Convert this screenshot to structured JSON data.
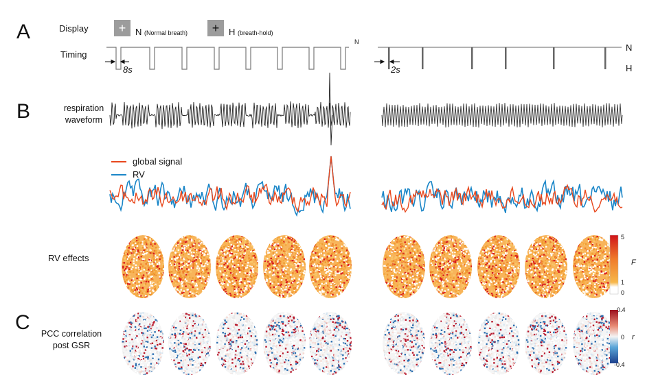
{
  "panels": {
    "a": "A",
    "b": "B",
    "c": "C"
  },
  "display": {
    "label": "Display",
    "key_n_symbol": "+",
    "key_n_text": "N",
    "key_n_sub": "(Normal breath)",
    "key_h_symbol": "+",
    "key_h_text": "H",
    "key_h_sub": "(breath-hold)"
  },
  "timing": {
    "label": "Timing",
    "left_interval": "8s",
    "right_interval": "2s",
    "level_n": "N",
    "level_h": "H",
    "cut_mark": "N"
  },
  "respiration": {
    "label_line1": "respiration",
    "label_line2": "waveform"
  },
  "legend": {
    "global_signal": "global signal",
    "rv": "RV",
    "global_color": "#e8471c",
    "rv_color": "#1a86c8"
  },
  "rv_effects": {
    "label": "RV effects",
    "scale_max": "5",
    "scale_mid": "1",
    "scale_min": "0",
    "scale_var": "F"
  },
  "pcc": {
    "label_line1": "PCC correlation",
    "label_line2": "post GSR",
    "scale_max": "0.4",
    "scale_mid": "0",
    "scale_min": "-0.4",
    "scale_var": "r"
  }
}
